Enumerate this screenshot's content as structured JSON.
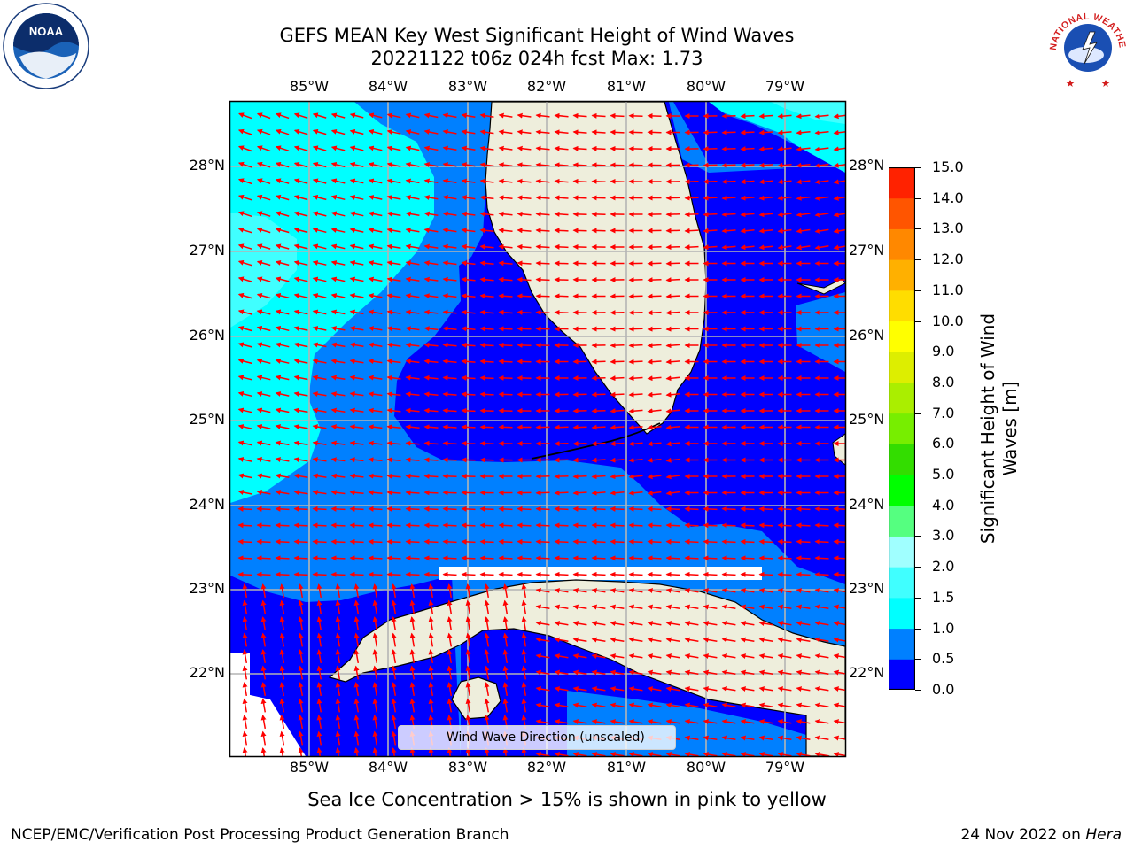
{
  "header": {
    "title_line1": "GEFS MEAN Key West Significant Height of Wind Waves",
    "title_line2": "20221122 t06z 024h fcst   Max: 1.73"
  },
  "map": {
    "lon_ticks": [
      "85°W",
      "84°W",
      "83°W",
      "82°W",
      "81°W",
      "80°W",
      "79°W"
    ],
    "lat_ticks": [
      "28°N",
      "27°N",
      "26°N",
      "25°N",
      "24°N",
      "23°N",
      "22°N"
    ],
    "land_color": "#eeeedc",
    "legend_label": "Wind Wave Direction (unscaled)"
  },
  "colorbar": {
    "label_line1": "Significant Height of Wind",
    "label_line2": "Waves [m]",
    "ticks": [
      "0.0",
      "0.5",
      "1.0",
      "1.5",
      "2.0",
      "3.0",
      "4.0",
      "5.0",
      "6.0",
      "7.0",
      "8.0",
      "9.0",
      "10.0",
      "11.0",
      "12.0",
      "13.0",
      "14.0",
      "15.0"
    ],
    "colors": [
      "#0000ff",
      "#0080ff",
      "#00ffff",
      "#40ffff",
      "#a0ffff",
      "#55ff80",
      "#00ff00",
      "#33dd00",
      "#77ee00",
      "#aaee00",
      "#ddee00",
      "#ffff00",
      "#ffdd00",
      "#ffb000",
      "#ff8800",
      "#ff5500",
      "#ff2200"
    ]
  },
  "footer": {
    "note": "Sea Ice Concentration > 15% is shown in pink to yellow",
    "credit": "NCEP/EMC/Verification Post Processing Product Generation Branch",
    "date": "24 Nov 2022 on",
    "host": "Hera"
  },
  "logos": {
    "noaa_text": "NOAA",
    "nws_text": "NATIONAL WEATHER SERVICE"
  }
}
